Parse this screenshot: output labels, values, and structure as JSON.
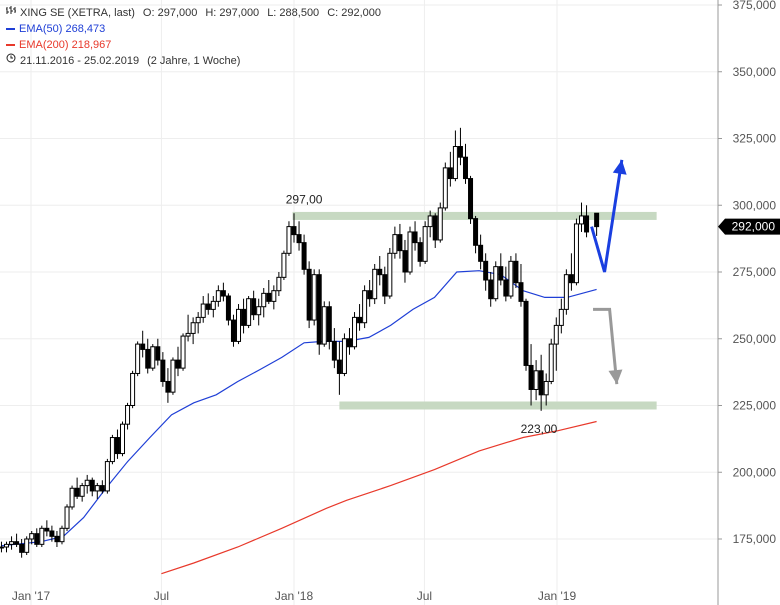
{
  "legend": {
    "title": "XING SE (XETRA, last)",
    "ohlc": {
      "o": "O: 297,000",
      "h": "H: 297,000",
      "l": "L: 288,500",
      "c": "C: 292,000"
    },
    "ema50_label": "EMA(50)",
    "ema50_value": "268,473",
    "ema200_label": "EMA(200)",
    "ema200_value": "218,967",
    "range": "21.11.2016 - 25.02.2019",
    "period": "(2 Jahre, 1 Woche)"
  },
  "colors": {
    "candle": "#000000",
    "ema50": "#1f3fd6",
    "ema200": "#e8392b",
    "zone": "#c7d9c2",
    "arrow_up": "#1a3fe0",
    "arrow_down": "#999999",
    "price_tag_bg": "#000000",
    "grid": "#eeeeee",
    "tick": "#555555",
    "legend_icon": "#222222"
  },
  "icons": {
    "bar_icon": "ohlc-bar-icon",
    "clock_icon": "clock-icon"
  },
  "chart_data": {
    "type": "candlestick",
    "x_start": "2016-11-21",
    "x_end": "2019-02-25",
    "x_tick_labels": [
      {
        "label": "Jan '17",
        "date": "2017-01-01"
      },
      {
        "label": "Jul",
        "date": "2017-07-01"
      },
      {
        "label": "Jan '18",
        "date": "2018-01-01"
      },
      {
        "label": "Jul",
        "date": "2018-07-01"
      },
      {
        "label": "Jan '19",
        "date": "2019-01-01"
      }
    ],
    "y_ticks": [
      175000,
      200000,
      225000,
      250000,
      275000,
      300000,
      325000,
      350000,
      375000
    ],
    "y_tick_labels": [
      "175,000",
      "200,000",
      "225,000",
      "250,000",
      "275,000",
      "300,000",
      "325,000",
      "350,000",
      "375,000"
    ],
    "ylim": [
      162000,
      375000
    ],
    "last_price": 292.0,
    "last_price_label": "292,000",
    "annotations": [
      {
        "label": "297,00",
        "value": 297.0
      },
      {
        "label": "223,00",
        "value": 223.0
      }
    ],
    "zones": [
      {
        "value": 296.0,
        "from": "2017-12-30",
        "to": "2019-02-25"
      },
      {
        "value": 225.0,
        "from": "2018-03-05",
        "to": "2019-02-25"
      }
    ],
    "series": [
      {
        "name": "EMA(50)",
        "points": [
          [
            "2016-11-21",
            172.5
          ],
          [
            "2017-01-15",
            174.0
          ],
          [
            "2017-02-15",
            176.0
          ],
          [
            "2017-03-15",
            183.0
          ],
          [
            "2017-04-15",
            194.0
          ],
          [
            "2017-05-15",
            204.0
          ],
          [
            "2017-06-15",
            213.0
          ],
          [
            "2017-07-15",
            221.5
          ],
          [
            "2017-08-15",
            226.0
          ],
          [
            "2017-09-15",
            229.0
          ],
          [
            "2017-10-15",
            234.0
          ],
          [
            "2017-11-15",
            238.5
          ],
          [
            "2017-12-15",
            243.0
          ],
          [
            "2018-01-15",
            248.5
          ],
          [
            "2018-02-10",
            249.0
          ],
          [
            "2018-03-15",
            249.0
          ],
          [
            "2018-04-15",
            250.5
          ],
          [
            "2018-05-15",
            255.0
          ],
          [
            "2018-06-15",
            261.0
          ],
          [
            "2018-07-15",
            265.5
          ],
          [
            "2018-08-15",
            275.0
          ],
          [
            "2018-09-15",
            275.5
          ],
          [
            "2018-10-15",
            274.0
          ],
          [
            "2018-11-15",
            268.0
          ],
          [
            "2018-12-15",
            265.5
          ],
          [
            "2019-01-15",
            265.5
          ],
          [
            "2019-02-25",
            268.5
          ]
        ]
      },
      {
        "name": "EMA(200)",
        "points": [
          [
            "2017-07-01",
            162.0
          ],
          [
            "2017-08-15",
            166.0
          ],
          [
            "2017-10-15",
            172.0
          ],
          [
            "2017-12-15",
            179.0
          ],
          [
            "2018-02-15",
            186.5
          ],
          [
            "2018-03-15",
            189.5
          ],
          [
            "2018-05-15",
            195.0
          ],
          [
            "2018-07-15",
            201.0
          ],
          [
            "2018-09-15",
            208.0
          ],
          [
            "2018-11-15",
            213.0
          ],
          [
            "2019-01-01",
            215.5
          ],
          [
            "2019-02-25",
            219.0
          ]
        ]
      }
    ],
    "candles": [
      [
        "2016-11-21",
        172,
        174,
        170,
        172
      ],
      [
        "2016-11-28",
        172,
        174,
        170,
        173
      ],
      [
        "2016-12-05",
        173,
        176,
        171,
        174
      ],
      [
        "2016-12-12",
        174,
        177,
        172,
        173
      ],
      [
        "2016-12-19",
        173,
        175,
        168,
        170
      ],
      [
        "2016-12-26",
        170,
        176,
        169,
        175
      ],
      [
        "2017-01-02",
        175,
        178,
        173,
        177
      ],
      [
        "2017-01-09",
        177,
        179,
        172,
        173
      ],
      [
        "2017-01-16",
        173,
        180,
        172,
        179
      ],
      [
        "2017-01-23",
        179,
        182,
        176,
        178
      ],
      [
        "2017-01-30",
        178,
        180,
        174,
        176
      ],
      [
        "2017-02-06",
        176,
        178,
        172,
        174
      ],
      [
        "2017-02-13",
        174,
        180,
        173,
        179
      ],
      [
        "2017-02-20",
        179,
        188,
        178,
        187
      ],
      [
        "2017-02-27",
        187,
        195,
        186,
        194
      ],
      [
        "2017-03-06",
        194,
        198,
        190,
        191
      ],
      [
        "2017-03-13",
        191,
        196,
        189,
        195
      ],
      [
        "2017-03-20",
        195,
        199,
        192,
        197
      ],
      [
        "2017-03-27",
        197,
        198,
        191,
        193
      ],
      [
        "2017-04-03",
        193,
        196,
        190,
        195
      ],
      [
        "2017-04-10",
        195,
        197,
        192,
        193
      ],
      [
        "2017-04-17",
        193,
        205,
        192,
        204
      ],
      [
        "2017-04-24",
        204,
        214,
        203,
        213
      ],
      [
        "2017-05-01",
        213,
        216,
        205,
        207
      ],
      [
        "2017-05-08",
        207,
        219,
        206,
        218
      ],
      [
        "2017-05-15",
        218,
        226,
        216,
        225
      ],
      [
        "2017-05-22",
        225,
        238,
        224,
        237
      ],
      [
        "2017-05-29",
        237,
        249,
        236,
        248
      ],
      [
        "2017-06-05",
        248,
        253,
        243,
        246
      ],
      [
        "2017-06-12",
        246,
        250,
        237,
        239
      ],
      [
        "2017-06-19",
        239,
        248,
        238,
        247
      ],
      [
        "2017-06-26",
        247,
        250,
        240,
        242
      ],
      [
        "2017-07-03",
        242,
        245,
        232,
        234
      ],
      [
        "2017-07-10",
        234,
        239,
        226,
        230
      ],
      [
        "2017-07-17",
        230,
        243,
        229,
        242
      ],
      [
        "2017-07-24",
        242,
        247,
        236,
        239
      ],
      [
        "2017-07-31",
        239,
        252,
        238,
        251
      ],
      [
        "2017-08-07",
        251,
        259,
        249,
        252
      ],
      [
        "2017-08-14",
        252,
        258,
        248,
        256
      ],
      [
        "2017-08-21",
        256,
        260,
        252,
        258
      ],
      [
        "2017-08-28",
        258,
        266,
        256,
        263
      ],
      [
        "2017-09-04",
        263,
        267,
        259,
        261
      ],
      [
        "2017-09-11",
        261,
        266,
        258,
        264
      ],
      [
        "2017-09-18",
        264,
        270,
        262,
        268
      ],
      [
        "2017-09-25",
        268,
        271,
        264,
        266
      ],
      [
        "2017-10-02",
        266,
        267,
        255,
        257
      ],
      [
        "2017-10-09",
        257,
        259,
        247,
        249
      ],
      [
        "2017-10-16",
        249,
        263,
        248,
        261
      ],
      [
        "2017-10-23",
        261,
        265,
        252,
        255
      ],
      [
        "2017-10-30",
        255,
        266,
        254,
        265
      ],
      [
        "2017-11-06",
        265,
        268,
        257,
        259
      ],
      [
        "2017-11-13",
        259,
        265,
        255,
        262
      ],
      [
        "2017-11-20",
        262,
        269,
        258,
        267
      ],
      [
        "2017-11-27",
        267,
        272,
        263,
        264
      ],
      [
        "2017-12-04",
        264,
        270,
        261,
        268
      ],
      [
        "2017-12-11",
        268,
        275,
        266,
        273
      ],
      [
        "2017-12-18",
        273,
        283,
        272,
        282
      ],
      [
        "2017-12-25",
        282,
        294,
        281,
        292
      ],
      [
        "2018-01-01",
        292,
        297,
        286,
        289
      ],
      [
        "2018-01-08",
        289,
        294,
        283,
        286
      ],
      [
        "2018-01-15",
        286,
        289,
        274,
        276
      ],
      [
        "2018-01-22",
        276,
        279,
        254,
        257
      ],
      [
        "2018-01-29",
        257,
        276,
        255,
        274
      ],
      [
        "2018-02-05",
        274,
        276,
        244,
        248
      ],
      [
        "2018-02-12",
        248,
        264,
        247,
        262
      ],
      [
        "2018-02-19",
        262,
        264,
        246,
        249
      ],
      [
        "2018-02-26",
        249,
        254,
        239,
        242
      ],
      [
        "2018-03-05",
        242,
        249,
        229,
        237
      ],
      [
        "2018-03-12",
        237,
        252,
        236,
        250
      ],
      [
        "2018-03-19",
        250,
        254,
        244,
        247
      ],
      [
        "2018-03-26",
        247,
        260,
        246,
        258
      ],
      [
        "2018-04-02",
        258,
        263,
        253,
        256
      ],
      [
        "2018-04-09",
        256,
        270,
        254,
        268
      ],
      [
        "2018-04-16",
        268,
        272,
        262,
        265
      ],
      [
        "2018-04-23",
        265,
        278,
        263,
        276
      ],
      [
        "2018-04-30",
        276,
        281,
        270,
        274
      ],
      [
        "2018-05-07",
        274,
        277,
        263,
        266
      ],
      [
        "2018-05-14",
        266,
        284,
        265,
        282
      ],
      [
        "2018-05-21",
        282,
        292,
        280,
        289
      ],
      [
        "2018-05-28",
        289,
        293,
        280,
        283
      ],
      [
        "2018-06-04",
        283,
        287,
        271,
        275
      ],
      [
        "2018-06-11",
        275,
        292,
        274,
        290
      ],
      [
        "2018-06-18",
        290,
        294,
        283,
        286
      ],
      [
        "2018-06-25",
        286,
        288,
        277,
        279
      ],
      [
        "2018-07-02",
        279,
        294,
        278,
        292
      ],
      [
        "2018-07-09",
        292,
        298,
        288,
        296
      ],
      [
        "2018-07-16",
        296,
        297,
        284,
        287
      ],
      [
        "2018-07-23",
        287,
        301,
        286,
        299
      ],
      [
        "2018-07-30",
        299,
        316,
        298,
        314
      ],
      [
        "2018-08-06",
        314,
        320,
        307,
        310
      ],
      [
        "2018-08-13",
        310,
        328,
        309,
        322
      ],
      [
        "2018-08-20",
        322,
        329,
        315,
        318
      ],
      [
        "2018-08-27",
        318,
        323,
        308,
        310
      ],
      [
        "2018-09-03",
        310,
        311,
        293,
        295
      ],
      [
        "2018-09-10",
        295,
        296,
        282,
        285
      ],
      [
        "2018-09-17",
        285,
        289,
        276,
        279
      ],
      [
        "2018-09-24",
        279,
        282,
        268,
        272
      ],
      [
        "2018-10-01",
        272,
        275,
        262,
        265
      ],
      [
        "2018-10-08",
        265,
        279,
        264,
        277
      ],
      [
        "2018-10-15",
        277,
        282,
        270,
        272
      ],
      [
        "2018-10-22",
        272,
        277,
        264,
        266
      ],
      [
        "2018-10-29",
        266,
        281,
        265,
        279
      ],
      [
        "2018-11-05",
        279,
        282,
        269,
        271
      ],
      [
        "2018-11-12",
        271,
        278,
        262,
        264
      ],
      [
        "2018-11-19",
        264,
        265,
        238,
        240
      ],
      [
        "2018-11-26",
        240,
        248,
        225,
        231
      ],
      [
        "2018-12-03",
        231,
        242,
        227,
        238
      ],
      [
        "2018-12-10",
        238,
        244,
        223,
        229
      ],
      [
        "2018-12-17",
        229,
        237,
        225,
        234
      ],
      [
        "2018-12-24",
        234,
        250,
        233,
        248
      ],
      [
        "2018-12-31",
        248,
        258,
        238,
        255
      ],
      [
        "2019-01-07",
        255,
        265,
        252,
        261
      ],
      [
        "2019-01-14",
        261,
        276,
        259,
        274
      ],
      [
        "2019-01-21",
        274,
        282,
        268,
        271
      ],
      [
        "2019-01-28",
        271,
        295,
        270,
        293
      ],
      [
        "2019-02-04",
        293,
        301,
        290,
        296
      ],
      [
        "2019-02-11",
        296,
        300,
        288,
        290
      ],
      [
        "2019-02-25",
        297,
        297,
        288.5,
        292
      ]
    ]
  },
  "arrows": [
    {
      "name": "bullish-arrow",
      "points": [
        [
          "2019-02-18",
          292
        ],
        [
          "2019-03-08",
          275
        ],
        [
          "2019-04-01",
          317
        ]
      ]
    },
    {
      "name": "bearish-arrow",
      "points": [
        [
          "2019-02-20",
          261
        ],
        [
          "2019-03-15",
          261
        ],
        [
          "2019-03-25",
          233
        ]
      ]
    }
  ]
}
